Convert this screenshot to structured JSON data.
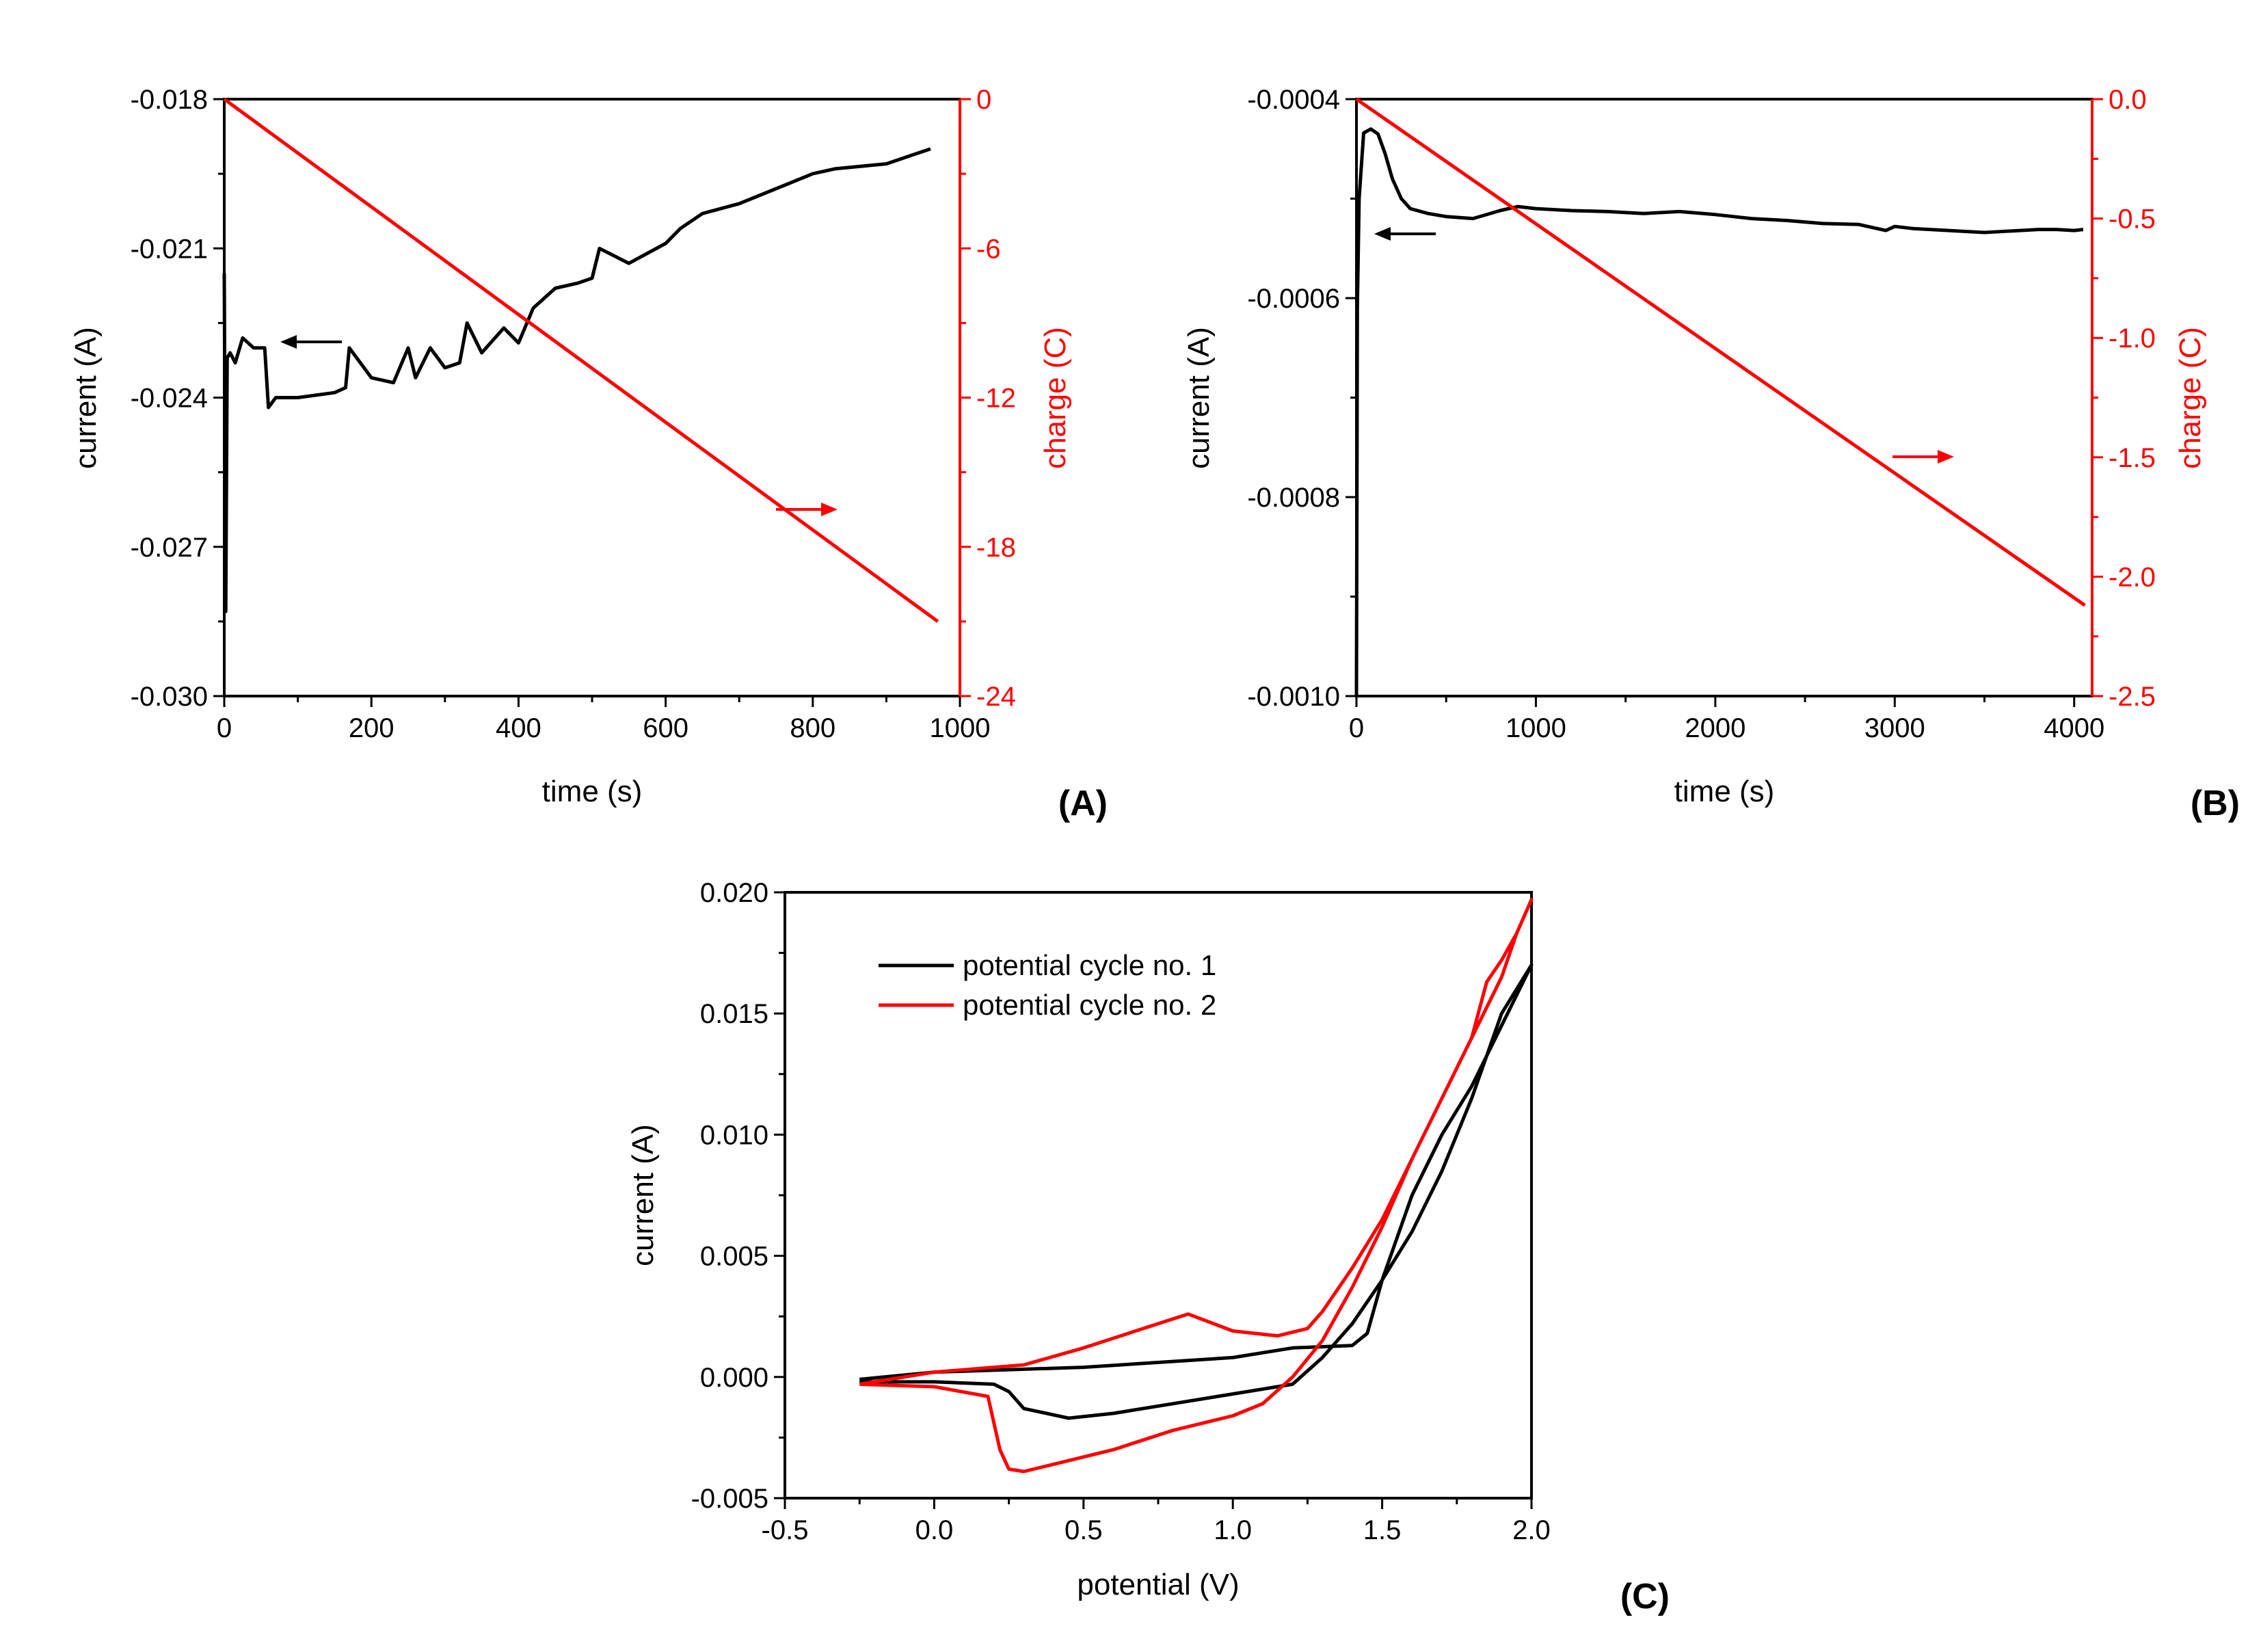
{
  "colors": {
    "primary": "#000000",
    "secondary": "#ff0000"
  },
  "chart_data": [
    {
      "id": "A",
      "type": "line",
      "panel_label": "(A)",
      "xlabel": "time (s)",
      "ylabel_left": "current (A)",
      "ylabel_right": "charge (C)",
      "xlim": [
        0,
        1000
      ],
      "ylim_left": [
        -0.03,
        -0.018
      ],
      "ylim_right": [
        -24,
        0
      ],
      "xticks": [
        "0",
        "200",
        "400",
        "600",
        "800",
        "1000"
      ],
      "yticks_left": [
        "-0.030",
        "-0.027",
        "-0.024",
        "-0.021",
        "-0.018"
      ],
      "yticks_right": [
        "-24",
        "-18",
        "-12",
        "-6",
        "0"
      ],
      "series": [
        {
          "axis": "left",
          "color": "#000000",
          "x": [
            0,
            2,
            4,
            8,
            15,
            25,
            40,
            55,
            60,
            70,
            100,
            150,
            165,
            170,
            200,
            230,
            250,
            260,
            280,
            300,
            320,
            330,
            350,
            380,
            400,
            420,
            450,
            480,
            500,
            510,
            550,
            600,
            620,
            650,
            700,
            750,
            800,
            830,
            900,
            940,
            960
          ],
          "y": [
            -0.0215,
            -0.0283,
            -0.0232,
            -0.0231,
            -0.0233,
            -0.0228,
            -0.023,
            -0.023,
            -0.0242,
            -0.024,
            -0.024,
            -0.0239,
            -0.0238,
            -0.023,
            -0.0236,
            -0.0237,
            -0.023,
            -0.0236,
            -0.023,
            -0.0234,
            -0.0233,
            -0.0225,
            -0.0231,
            -0.0226,
            -0.0229,
            -0.0222,
            -0.0218,
            -0.0217,
            -0.0216,
            -0.021,
            -0.0213,
            -0.0209,
            -0.0206,
            -0.0203,
            -0.0201,
            -0.0198,
            -0.0195,
            -0.0194,
            -0.0193,
            -0.0191,
            -0.019
          ]
        },
        {
          "axis": "right",
          "color": "#ff0000",
          "x": [
            0,
            970
          ],
          "y": [
            0,
            -21
          ]
        }
      ]
    },
    {
      "id": "B",
      "type": "line",
      "panel_label": "(B)",
      "xlabel": "time (s)",
      "ylabel_left": "current (A)",
      "ylabel_right": "charge (C)",
      "xlim": [
        0,
        4100
      ],
      "ylim_left": [
        -0.001,
        -0.0004
      ],
      "ylim_right": [
        -2.5,
        0.0
      ],
      "xticks": [
        "0",
        "1000",
        "2000",
        "3000",
        "4000"
      ],
      "yticks_left": [
        "-0.0010",
        "-0.0008",
        "-0.0006",
        "-0.0004"
      ],
      "yticks_right": [
        "-2.5",
        "-2.0",
        "-1.5",
        "-1.0",
        "-0.5",
        "0.0"
      ],
      "series": [
        {
          "axis": "left",
          "color": "#000000",
          "x": [
            0,
            5,
            15,
            40,
            80,
            120,
            160,
            200,
            250,
            300,
            400,
            500,
            650,
            800,
            900,
            1000,
            1200,
            1400,
            1600,
            1800,
            2000,
            2100,
            2200,
            2400,
            2600,
            2800,
            2950,
            3000,
            3100,
            3300,
            3500,
            3600,
            3700,
            3800,
            3900,
            4000,
            4050
          ],
          "y": [
            -0.001,
            -0.00061,
            -0.0005,
            -0.000434,
            -0.00043,
            -0.000435,
            -0.000455,
            -0.00048,
            -0.0005,
            -0.00051,
            -0.000515,
            -0.000518,
            -0.00052,
            -0.000512,
            -0.000508,
            -0.00051,
            -0.000512,
            -0.000513,
            -0.000515,
            -0.000513,
            -0.000516,
            -0.000518,
            -0.00052,
            -0.000522,
            -0.000525,
            -0.000526,
            -0.000532,
            -0.000528,
            -0.00053,
            -0.000532,
            -0.000534,
            -0.000533,
            -0.000532,
            -0.000531,
            -0.000531,
            -0.000532,
            -0.000531
          ]
        },
        {
          "axis": "right",
          "color": "#ff0000",
          "x": [
            0,
            4060
          ],
          "y": [
            0,
            -2.12
          ]
        }
      ]
    },
    {
      "id": "C",
      "type": "line",
      "panel_label": "(C)",
      "xlabel": "potential (V)",
      "ylabel": "current (A)",
      "xlim": [
        -0.5,
        2.0
      ],
      "ylim": [
        -0.005,
        0.02
      ],
      "xticks": [
        "-0.5",
        "0.0",
        "0.5",
        "1.0",
        "1.5",
        "2.0"
      ],
      "yticks": [
        "-0.005",
        "0.000",
        "0.005",
        "0.010",
        "0.015",
        "0.020"
      ],
      "legend_position": "top-left",
      "series": [
        {
          "name": "potential cycle no. 1",
          "color": "#000000",
          "x": [
            -0.25,
            0.0,
            0.5,
            1.0,
            1.2,
            1.4,
            1.45,
            1.5,
            1.6,
            1.7,
            1.8,
            1.9,
            2.0,
            1.9,
            1.8,
            1.7,
            1.6,
            1.5,
            1.4,
            1.3,
            1.2,
            1.0,
            0.8,
            0.6,
            0.45,
            0.3,
            0.25,
            0.2,
            0.0,
            -0.25
          ],
          "y": [
            -0.0001,
            0.0002,
            0.0004,
            0.0008,
            0.0012,
            0.0013,
            0.0018,
            0.004,
            0.0075,
            0.01,
            0.012,
            0.0145,
            0.017,
            0.015,
            0.0115,
            0.0085,
            0.006,
            0.004,
            0.0022,
            0.0008,
            -0.0003,
            -0.0007,
            -0.0011,
            -0.0015,
            -0.0017,
            -0.0013,
            -0.0006,
            -0.0003,
            -0.0002,
            -0.0002
          ]
        },
        {
          "name": "potential cycle no. 2",
          "color": "#ff0000",
          "x": [
            -0.25,
            0.0,
            0.3,
            0.5,
            0.7,
            0.85,
            1.0,
            1.15,
            1.25,
            1.3,
            1.4,
            1.5,
            1.6,
            1.7,
            1.8,
            1.85,
            1.9,
            1.95,
            2.0,
            1.95,
            1.9,
            1.8,
            1.7,
            1.6,
            1.5,
            1.4,
            1.3,
            1.2,
            1.1,
            1.0,
            0.8,
            0.6,
            0.4,
            0.3,
            0.25,
            0.22,
            0.18,
            0.0,
            -0.25
          ],
          "y": [
            -0.0003,
            0.0002,
            0.0005,
            0.0012,
            0.002,
            0.0026,
            0.0019,
            0.0017,
            0.002,
            0.0027,
            0.0045,
            0.0065,
            0.009,
            0.0115,
            0.014,
            0.0163,
            0.0172,
            0.0183,
            0.0197,
            0.0183,
            0.0165,
            0.014,
            0.0115,
            0.009,
            0.0062,
            0.0037,
            0.0015,
            0.0,
            -0.0011,
            -0.0016,
            -0.0022,
            -0.003,
            -0.0036,
            -0.0039,
            -0.0038,
            -0.003,
            -0.0008,
            -0.0004,
            -0.0003
          ]
        }
      ]
    }
  ]
}
